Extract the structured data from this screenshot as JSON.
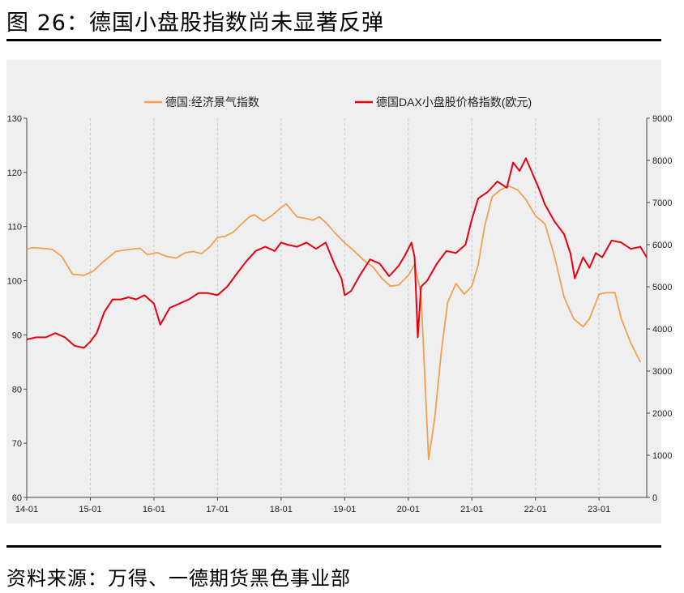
{
  "figure": {
    "title": "图 26：德国小盘股指数尚未显著反弹",
    "source": "资料来源：万得、一德期货黑色事业部"
  },
  "colors": {
    "series1": "#f0a050",
    "series2": "#e60012",
    "panel": "#efefef",
    "grid": "#c8c8c8"
  },
  "chart_data": {
    "type": "line",
    "grid": "vertical dashed lines at year ticks",
    "legend_position": "top-center",
    "x_axis": {
      "ticks": [
        "14-01",
        "15-01",
        "16-01",
        "17-01",
        "18-01",
        "19-01",
        "20-01",
        "21-01",
        "22-01",
        "23-01"
      ],
      "range": [
        2014.0,
        2023.75
      ]
    },
    "y_left": {
      "ticks": [
        "60",
        "70",
        "80",
        "90",
        "100",
        "110",
        "120",
        "130"
      ],
      "range": [
        60,
        130
      ]
    },
    "y_right": {
      "ticks": [
        "0",
        "1000",
        "2000",
        "3000",
        "4000",
        "5000",
        "6000",
        "7000",
        "8000",
        "9000"
      ],
      "range": [
        0,
        9000
      ]
    },
    "series": [
      {
        "name": "德国:经济景气指数",
        "axis": "left",
        "x": [
          2014.0,
          2014.08,
          2014.25,
          2014.4,
          2014.55,
          2014.72,
          2014.9,
          2015.05,
          2015.2,
          2015.4,
          2015.55,
          2015.7,
          2015.78,
          2015.9,
          2016.05,
          2016.2,
          2016.35,
          2016.5,
          2016.62,
          2016.75,
          2016.88,
          2017.0,
          2017.12,
          2017.25,
          2017.38,
          2017.5,
          2017.58,
          2017.72,
          2017.85,
          2018.0,
          2018.08,
          2018.25,
          2018.4,
          2018.5,
          2018.6,
          2018.7,
          2018.85,
          2019.0,
          2019.15,
          2019.3,
          2019.45,
          2019.58,
          2019.72,
          2019.85,
          2020.0,
          2020.1,
          2020.2,
          2020.32,
          2020.42,
          2020.52,
          2020.62,
          2020.75,
          2020.88,
          2021.0,
          2021.1,
          2021.2,
          2021.32,
          2021.45,
          2021.58,
          2021.72,
          2021.85,
          2022.0,
          2022.15,
          2022.3,
          2022.45,
          2022.6,
          2022.75,
          2022.85,
          2023.0,
          2023.12,
          2023.25,
          2023.35,
          2023.5,
          2023.65
        ],
        "values": [
          105.8,
          106.1,
          106.0,
          105.8,
          104.5,
          101.2,
          101.0,
          101.8,
          103.5,
          105.4,
          105.7,
          105.9,
          106.0,
          104.8,
          105.2,
          104.5,
          104.2,
          105.2,
          105.4,
          105.0,
          106.3,
          108.0,
          108.2,
          109.0,
          110.5,
          111.8,
          112.2,
          111.0,
          112.0,
          113.5,
          114.2,
          111.8,
          111.5,
          111.2,
          111.8,
          110.8,
          108.8,
          107.0,
          105.5,
          103.8,
          102.5,
          100.5,
          99.0,
          99.2,
          101.0,
          103.0,
          97.5,
          67.0,
          75.0,
          87.0,
          96.0,
          99.5,
          97.5,
          99.0,
          103.0,
          110.0,
          115.5,
          116.8,
          117.5,
          116.8,
          115.0,
          112.0,
          110.5,
          104.5,
          97.0,
          93.0,
          91.5,
          93.0,
          97.5,
          97.8,
          97.8,
          93.0,
          88.5,
          85.0
        ]
      },
      {
        "name": "德国DAX小盘股价格指数(欧元)",
        "axis": "right",
        "x": [
          2014.0,
          2014.15,
          2014.3,
          2014.45,
          2014.6,
          2014.75,
          2014.9,
          2015.0,
          2015.1,
          2015.22,
          2015.35,
          2015.48,
          2015.6,
          2015.72,
          2015.85,
          2016.0,
          2016.1,
          2016.25,
          2016.4,
          2016.55,
          2016.7,
          2016.85,
          2017.0,
          2017.15,
          2017.3,
          2017.45,
          2017.6,
          2017.75,
          2017.9,
          2018.0,
          2018.1,
          2018.25,
          2018.4,
          2018.55,
          2018.7,
          2018.85,
          2018.95,
          2019.0,
          2019.1,
          2019.25,
          2019.4,
          2019.55,
          2019.7,
          2019.85,
          2019.95,
          2020.05,
          2020.1,
          2020.15,
          2020.2,
          2020.3,
          2020.45,
          2020.6,
          2020.75,
          2020.9,
          2021.0,
          2021.1,
          2021.25,
          2021.4,
          2021.55,
          2021.65,
          2021.75,
          2021.85,
          2021.95,
          2022.05,
          2022.15,
          2022.3,
          2022.45,
          2022.55,
          2022.62,
          2022.75,
          2022.85,
          2022.95,
          2023.05,
          2023.2,
          2023.35,
          2023.5,
          2023.65,
          2023.75
        ],
        "values": [
          3750,
          3800,
          3800,
          3900,
          3800,
          3600,
          3550,
          3700,
          3900,
          4400,
          4700,
          4700,
          4750,
          4700,
          4800,
          4600,
          4100,
          4500,
          4600,
          4700,
          4850,
          4850,
          4800,
          5000,
          5300,
          5600,
          5850,
          5950,
          5850,
          6050,
          6000,
          5950,
          6050,
          5900,
          6050,
          5500,
          5200,
          4800,
          4900,
          5300,
          5650,
          5550,
          5250,
          5500,
          5750,
          6050,
          5700,
          3800,
          5000,
          5150,
          5550,
          5850,
          5800,
          6000,
          6600,
          7100,
          7250,
          7500,
          7350,
          7950,
          7750,
          8050,
          7700,
          7350,
          6950,
          6550,
          6250,
          5800,
          5200,
          5700,
          5450,
          5800,
          5700,
          6100,
          6050,
          5900,
          5950,
          5700
        ]
      }
    ]
  }
}
